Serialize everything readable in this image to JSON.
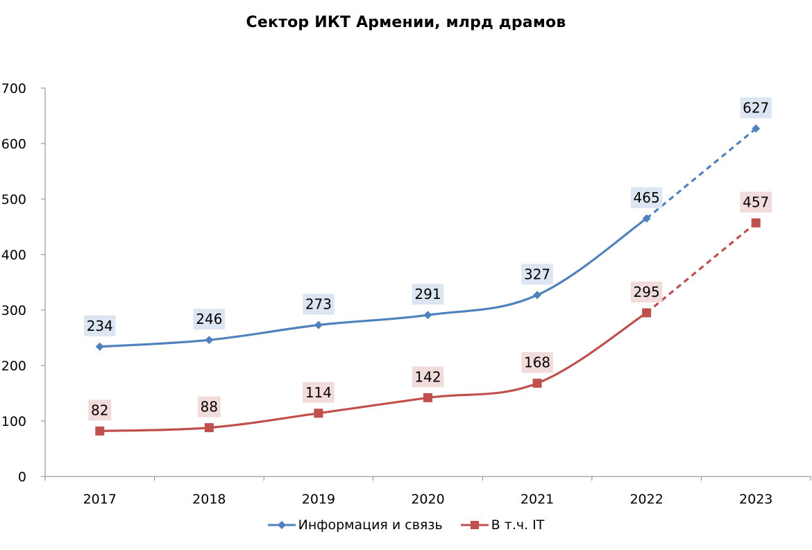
{
  "chart_data": {
    "type": "line",
    "title": "Сектор ИКТ Армении, млрд драмов",
    "categories": [
      "2017",
      "2018",
      "2019",
      "2020",
      "2021",
      "2022",
      "2023"
    ],
    "ylim": [
      0,
      700
    ],
    "yticks": [
      "0",
      "100",
      "200",
      "300",
      "400",
      "500",
      "600",
      "700"
    ],
    "grid": false,
    "legend_position": "bottom",
    "series": [
      {
        "name": "Информация и связь",
        "values": [
          234,
          246,
          273,
          291,
          327,
          465,
          627
        ],
        "labels": [
          "234",
          "246",
          "273",
          "291",
          "327",
          "465",
          "627"
        ],
        "color": "#4F81BD",
        "label_bg": "#DCE6F2",
        "marker": "diamond",
        "dashed_last_segment": true
      },
      {
        "name": "В т.ч. IT",
        "values": [
          82,
          88,
          114,
          142,
          168,
          295,
          457
        ],
        "labels": [
          "82",
          "88",
          "114",
          "142",
          "168",
          "295",
          "457"
        ],
        "color": "#C0504D",
        "label_bg": "#F2DCDB",
        "marker": "square",
        "dashed_last_segment": true
      }
    ]
  }
}
